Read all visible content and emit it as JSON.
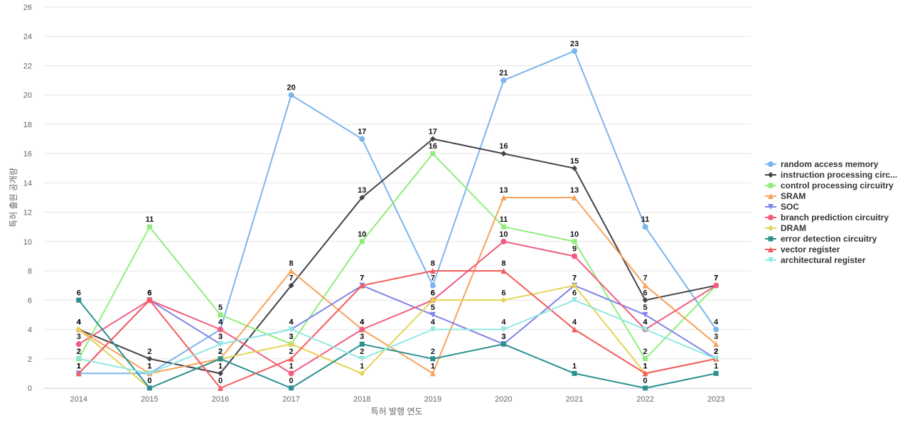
{
  "chart_data": {
    "type": "line",
    "title": "",
    "xlabel": "특허 발행 연도",
    "ylabel": "특허 출원 공개량",
    "x": [
      "2014",
      "2015",
      "2016",
      "2017",
      "2018",
      "2019",
      "2020",
      "2021",
      "2022",
      "2023"
    ],
    "ylim": [
      0,
      26
    ],
    "yticks": [
      0,
      2,
      4,
      6,
      8,
      10,
      12,
      14,
      16,
      18,
      20,
      22,
      24,
      26
    ],
    "grid": true,
    "legend_position": "right",
    "series": [
      {
        "name": "random access memory",
        "color": "#7cb5ec",
        "marker": "circle",
        "values": [
          1,
          1,
          4,
          20,
          17,
          7,
          21,
          23,
          11,
          4
        ]
      },
      {
        "name": "instruction processing circ...",
        "color": "#434348",
        "marker": "diamond",
        "values": [
          4,
          2,
          1,
          7,
          13,
          17,
          16,
          15,
          6,
          7
        ]
      },
      {
        "name": "control processing circuitry",
        "color": "#90ed7d",
        "marker": "square",
        "values": [
          2,
          11,
          5,
          3,
          10,
          16,
          11,
          10,
          2,
          7
        ]
      },
      {
        "name": "SRAM",
        "color": "#f7a35c",
        "marker": "triangle",
        "values": [
          4,
          1,
          2,
          8,
          4,
          1,
          13,
          13,
          7,
          3
        ]
      },
      {
        "name": "SOC",
        "color": "#8085e9",
        "marker": "triangle-down",
        "values": [
          1,
          6,
          3,
          4,
          7,
          5,
          3,
          7,
          5,
          2
        ]
      },
      {
        "name": "branch prediction circuitry",
        "color": "#f15c80",
        "marker": "circle",
        "values": [
          3,
          6,
          4,
          1,
          4,
          6,
          10,
          9,
          4,
          7
        ]
      },
      {
        "name": "DRAM",
        "color": "#e4d354",
        "marker": "diamond",
        "values": [
          4,
          0,
          2,
          3,
          1,
          6,
          6,
          7,
          1,
          2
        ]
      },
      {
        "name": "error detection circuitry",
        "color": "#2b908f",
        "marker": "square",
        "values": [
          6,
          0,
          2,
          0,
          3,
          2,
          3,
          1,
          0,
          1
        ]
      },
      {
        "name": "vector register",
        "color": "#f45b5b",
        "marker": "triangle",
        "values": [
          1,
          6,
          0,
          2,
          7,
          8,
          8,
          4,
          1,
          2
        ]
      },
      {
        "name": "architectural register",
        "color": "#91e8e1",
        "marker": "triangle-down",
        "values": [
          2,
          1,
          3,
          4,
          2,
          4,
          4,
          6,
          4,
          2
        ]
      }
    ]
  }
}
